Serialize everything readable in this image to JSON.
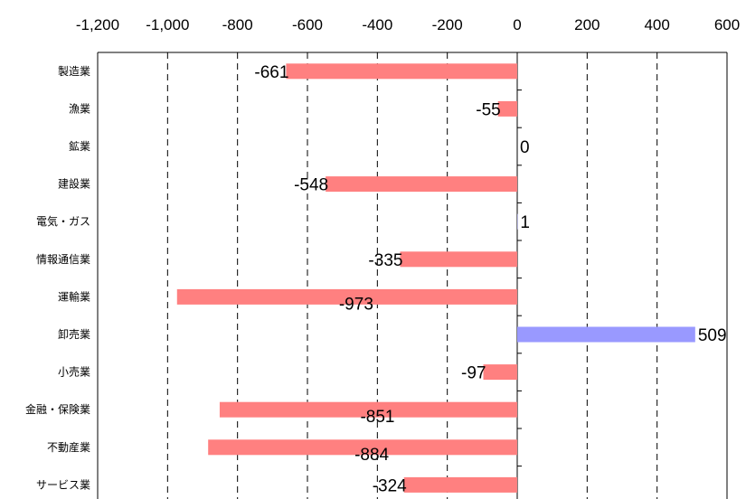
{
  "chart_data": {
    "type": "bar",
    "orientation": "horizontal",
    "categories": [
      "製造業",
      "漁業",
      "鉱業",
      "建設業",
      "電気・ガス",
      "情報通信業",
      "運輸業",
      "卸売業",
      "小売業",
      "金融・保険業",
      "不動産業",
      "サービス業"
    ],
    "values": [
      -661,
      -55,
      0,
      -548,
      1,
      -335,
      -973,
      509,
      -97,
      -851,
      -884,
      -324
    ],
    "data_labels": [
      "-661",
      "-55",
      "0",
      "-548",
      "1",
      "-335",
      "-973",
      "509",
      "-97",
      "-851",
      "-884",
      "-324"
    ],
    "xlim": [
      -1200,
      600
    ],
    "x_ticks": [
      -1200,
      -1000,
      -800,
      -600,
      -400,
      -200,
      0,
      200,
      400,
      600
    ],
    "x_tick_labels": [
      "-1,200",
      "-1,000",
      "-800",
      "-600",
      "-400",
      "-200",
      "0",
      "200",
      "400",
      "600"
    ],
    "x_axis_position": "top",
    "grid": "vertical-dashed",
    "colors": {
      "negative": "#ff8080",
      "positive": "#9999ff"
    },
    "title": "",
    "xlabel": "",
    "ylabel": ""
  }
}
